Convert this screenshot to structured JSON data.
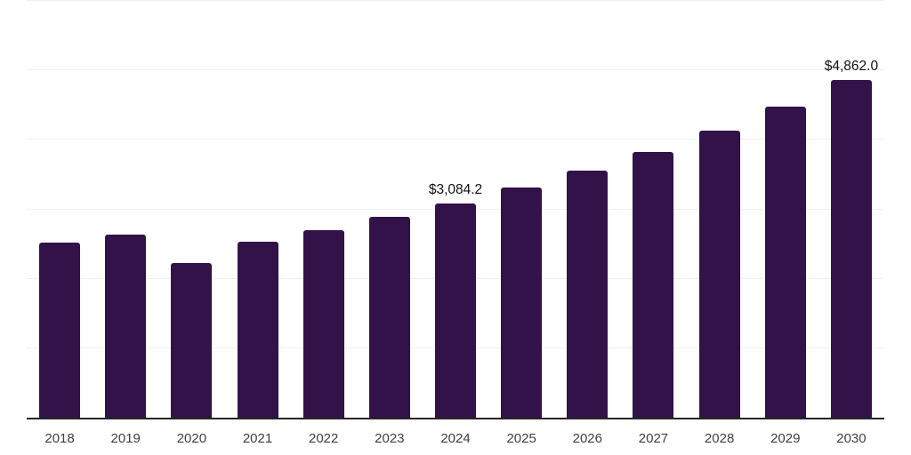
{
  "chart_data": {
    "type": "bar",
    "title": "",
    "xlabel": "",
    "ylabel": "",
    "categories": [
      "2018",
      "2019",
      "2020",
      "2021",
      "2022",
      "2023",
      "2024",
      "2025",
      "2026",
      "2027",
      "2028",
      "2029",
      "2030"
    ],
    "values": [
      2520,
      2640,
      2220,
      2530,
      2700,
      2895,
      3084.2,
      3310,
      3555,
      3830,
      4130,
      4480,
      4862
    ],
    "point_labels": [
      "",
      "",
      "",
      "",
      "",
      "",
      "$3,084.2",
      "",
      "",
      "",
      "",
      "",
      "$4,862.0"
    ],
    "ylim": [
      0,
      6000
    ],
    "gridline_step": 1000,
    "grid": true,
    "legend": "none",
    "colors": {
      "bar": "#331249",
      "gridline": "#f0f0f0",
      "axis_line": "#262626",
      "value_label": "#111111",
      "tick_label": "#404040",
      "background": "#ffffff"
    }
  }
}
